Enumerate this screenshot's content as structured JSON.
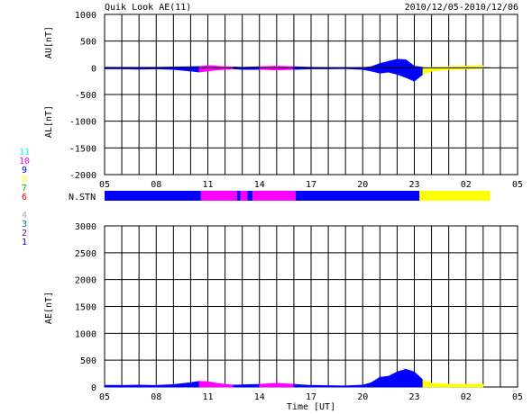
{
  "chart_data": {
    "type": "area",
    "title": "Quik Look AE(11)",
    "date_range": "2010/12/05-2010/12/06",
    "x_tick_labels": [
      "05",
      "08",
      "11",
      "14",
      "17",
      "20",
      "23",
      "02",
      "05"
    ],
    "xlabel": "Time [UT]",
    "station_colors": {
      "1": "#0000ff",
      "2": "#800080",
      "3": "#008080",
      "4": "#aaaaaa",
      "5": "#ffffff",
      "6": "#ff0000",
      "7": "#00c000",
      "8": "#ffff00",
      "9": "#0000ff",
      "10": "#ff00ff",
      "11": "#00ffff"
    },
    "top_panel": {
      "ylabel_top": "AU[nT]",
      "ylabel_bottom": "AL[nT]",
      "ylim": [
        -2000,
        1000
      ],
      "y_ticks": [
        1000,
        500,
        0,
        -500,
        -1000,
        -1500,
        -2000
      ],
      "series": [
        {
          "segment": "AU",
          "x": [
            5,
            6,
            7,
            8,
            9,
            10,
            10.5,
            11,
            11.5,
            12,
            12.5,
            13,
            14,
            15,
            16,
            17,
            18,
            19,
            20,
            20.5,
            21,
            21.5,
            22,
            22.5,
            23,
            23.5,
            24,
            25,
            26,
            27
          ],
          "y": [
            10,
            10,
            10,
            10,
            15,
            20,
            25,
            40,
            30,
            20,
            15,
            10,
            20,
            30,
            20,
            10,
            5,
            5,
            5,
            20,
            80,
            120,
            160,
            150,
            30,
            10,
            10,
            20,
            30,
            40
          ]
        },
        {
          "segment": "AL",
          "x": [
            5,
            6,
            7,
            8,
            9,
            10,
            10.5,
            11,
            11.5,
            12,
            12.5,
            13,
            14,
            15,
            16,
            17,
            18,
            19,
            20,
            20.5,
            21,
            21.5,
            22,
            22.5,
            23,
            23.5,
            24,
            25,
            26,
            27
          ],
          "y": [
            -20,
            -20,
            -25,
            -20,
            -30,
            -60,
            -80,
            -60,
            -40,
            -30,
            -20,
            -30,
            -30,
            -40,
            -30,
            -20,
            -20,
            -15,
            -30,
            -60,
            -100,
            -80,
            -120,
            -180,
            -250,
            -120,
            -60,
            -30,
            -20,
            -10
          ]
        }
      ]
    },
    "n_stn": {
      "label": "N.STN",
      "segments": [
        {
          "start": 5,
          "end": 10.6,
          "stations": 9
        },
        {
          "start": 10.6,
          "end": 12.7,
          "stations": 10
        },
        {
          "start": 12.7,
          "end": 12.9,
          "stations": 9
        },
        {
          "start": 12.9,
          "end": 13.3,
          "stations": 10
        },
        {
          "start": 13.3,
          "end": 13.6,
          "stations": 9
        },
        {
          "start": 13.6,
          "end": 16.1,
          "stations": 10
        },
        {
          "start": 16.1,
          "end": 23.3,
          "stations": 9
        },
        {
          "start": 23.3,
          "end": 27.4,
          "stations": 8
        }
      ]
    },
    "bottom_panel": {
      "ylabel": "AE[nT]",
      "ylim": [
        0,
        3000
      ],
      "y_ticks": [
        3000,
        2500,
        2000,
        1500,
        1000,
        500,
        0
      ],
      "series": [
        {
          "segment": "AE",
          "x": [
            5,
            6,
            7,
            8,
            9,
            10,
            10.5,
            11,
            11.5,
            12,
            12.5,
            13,
            14,
            15,
            16,
            17,
            18,
            19,
            20,
            20.5,
            21,
            21.5,
            22,
            22.5,
            23,
            23.5,
            24,
            25,
            26,
            27
          ],
          "y": [
            30,
            30,
            35,
            30,
            45,
            80,
            105,
            100,
            70,
            50,
            35,
            40,
            50,
            70,
            50,
            30,
            25,
            20,
            35,
            80,
            180,
            200,
            280,
            330,
            280,
            130,
            70,
            50,
            50,
            50
          ]
        }
      ]
    }
  }
}
